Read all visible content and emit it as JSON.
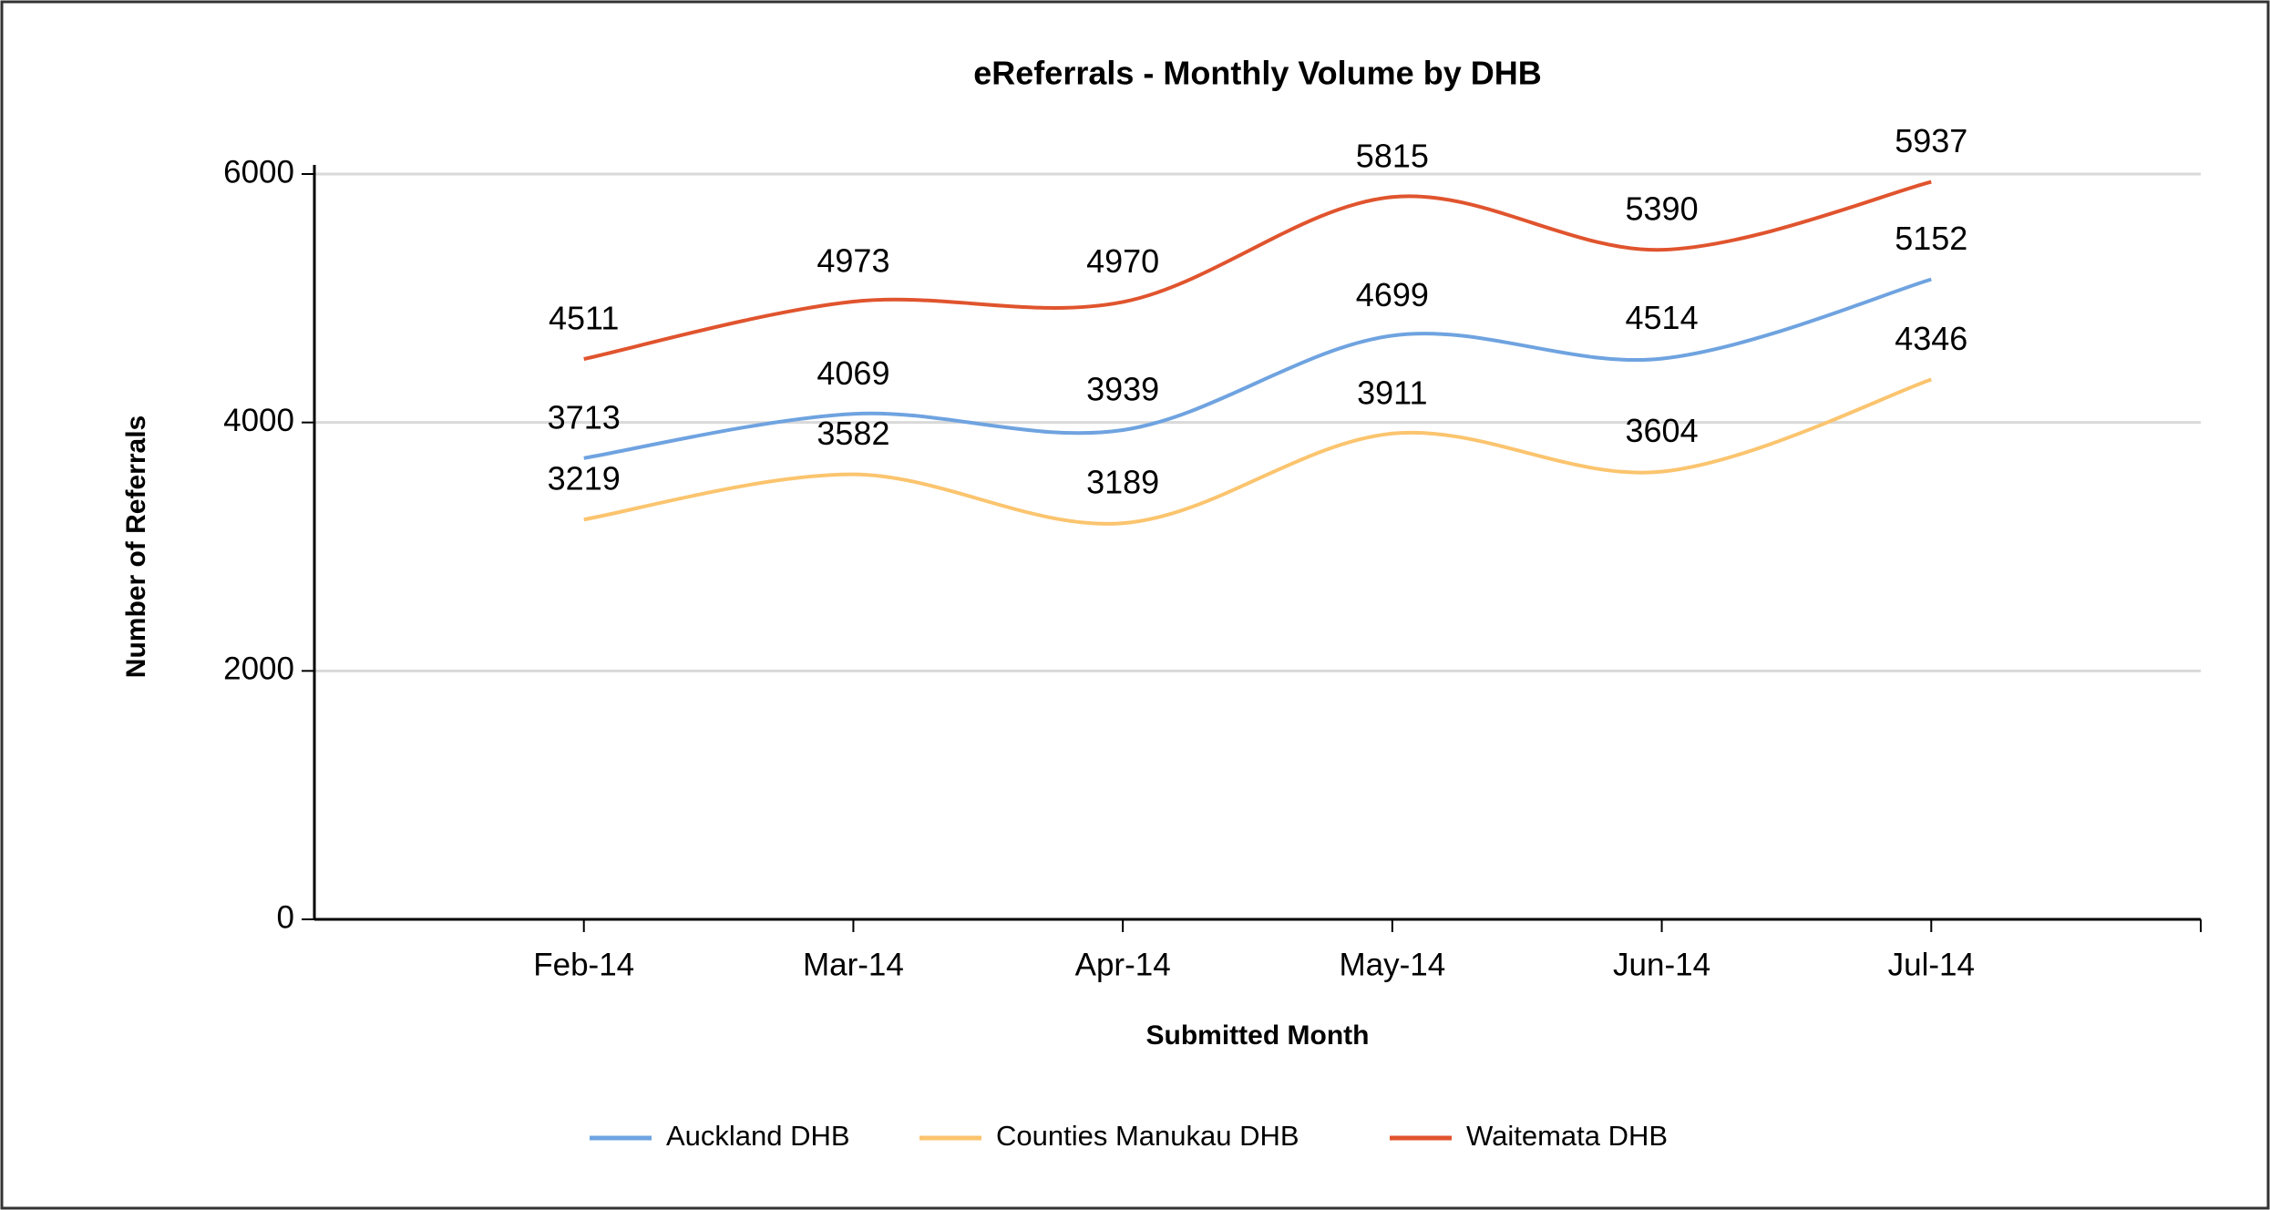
{
  "chart_data": {
    "type": "line",
    "title": "eReferrals - Monthly Volume by DHB",
    "x_label": "Submitted Month",
    "y_label": "Number of Referrals",
    "categories": [
      "Feb-14",
      "Mar-14",
      "Apr-14",
      "May-14",
      "Jun-14",
      "Jul-14"
    ],
    "series": [
      {
        "name": "Auckland DHB",
        "color": "#6fa3e0",
        "values": [
          3713,
          4069,
          3939,
          4699,
          4514,
          5152
        ]
      },
      {
        "name": "Counties Manukau DHB",
        "color": "#fbc46e",
        "values": [
          3219,
          3582,
          3189,
          3911,
          3604,
          4346
        ]
      },
      {
        "name": "Waitemata DHB",
        "color": "#e0542e",
        "values": [
          4511,
          4973,
          4970,
          5815,
          5390,
          5937
        ]
      }
    ],
    "ylim": [
      0,
      6000
    ],
    "yticks": [
      0,
      2000,
      4000,
      6000
    ],
    "grid": true,
    "legend": "bottom"
  }
}
